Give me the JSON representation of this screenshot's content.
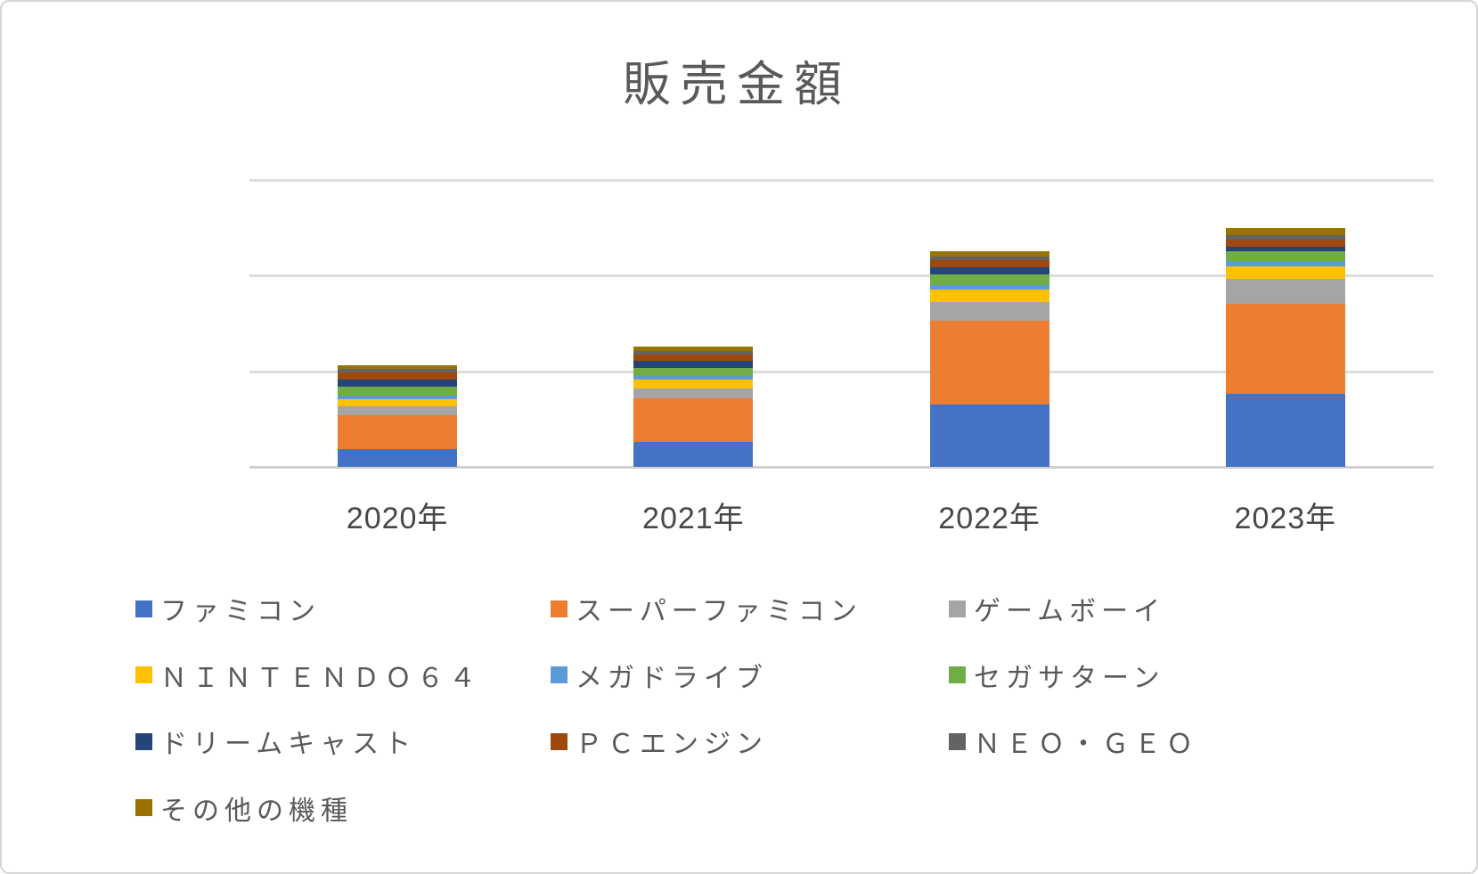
{
  "chart_data": {
    "type": "bar",
    "stacked": true,
    "title": "販売金額",
    "xlabel": "",
    "ylabel": "",
    "categories": [
      "2020年",
      "2021年",
      "2022年",
      "2023年"
    ],
    "series": [
      {
        "name": "ファミコン",
        "color": "#4472C4",
        "values": [
          0.19,
          0.26,
          0.65,
          0.76
        ]
      },
      {
        "name": "スーパーファミコン",
        "color": "#ED7D31",
        "values": [
          0.35,
          0.46,
          0.88,
          0.95
        ]
      },
      {
        "name": "ゲームボーイ",
        "color": "#A5A5A5",
        "values": [
          0.09,
          0.1,
          0.19,
          0.26
        ]
      },
      {
        "name": "ＮＩＮＴＥＮＤＯ６４",
        "color": "#FFC000",
        "values": [
          0.08,
          0.09,
          0.13,
          0.13
        ]
      },
      {
        "name": "メガドライブ",
        "color": "#5B9BD5",
        "values": [
          0.04,
          0.04,
          0.055,
          0.05
        ]
      },
      {
        "name": "セガサターン",
        "color": "#70AD47",
        "values": [
          0.09,
          0.085,
          0.105,
          0.105
        ]
      },
      {
        "name": "ドリームキャスト",
        "color": "#264478",
        "values": [
          0.07,
          0.07,
          0.075,
          0.045
        ]
      },
      {
        "name": "ＰＣエンジン",
        "color": "#9E480E",
        "values": [
          0.08,
          0.065,
          0.075,
          0.08
        ]
      },
      {
        "name": "ＮＥＯ・ＧＥＯ",
        "color": "#636363",
        "values": [
          0.035,
          0.04,
          0.04,
          0.045
        ]
      },
      {
        "name": "その他の機種",
        "color": "#997300",
        "values": [
          0.04,
          0.045,
          0.06,
          0.07
        ]
      }
    ],
    "ylim": [
      0,
      3
    ],
    "y_axis_labels_visible": false,
    "gridlines": {
      "visible": true,
      "values": [
        1,
        2,
        3
      ],
      "color": "#dcdcdc"
    },
    "legend_position": "bottom",
    "units_note": "no y-axis tick labels shown; values expressed in gridline-interval units"
  }
}
